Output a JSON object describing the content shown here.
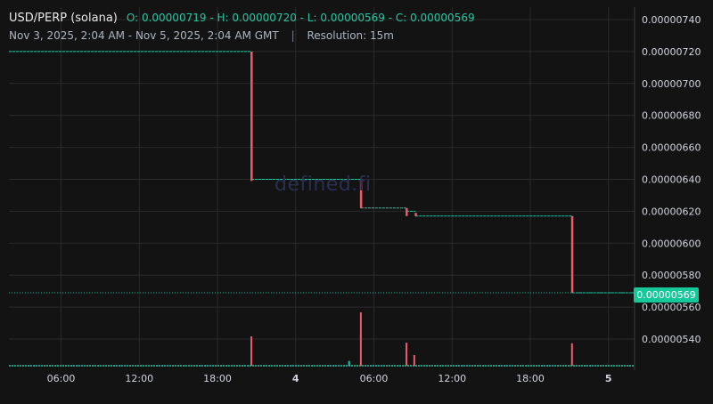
{
  "header": {
    "symbol": "USD/PERP (solana)",
    "ohlc": "O: 0.00000719 - H: 0.00000720 - L: 0.00000569 - C: 0.00000569",
    "range": "Nov 3, 2025, 2:04 AM - Nov 5, 2025, 2:04 AM GMT",
    "separator": "|",
    "resolution": "Resolution: 15m"
  },
  "watermark": "defined.fi",
  "last_price_label": "0.00000569",
  "colors": {
    "background": "#131313",
    "grid": "#2a2a2a",
    "up": "#26c6a0",
    "down": "#f05a6a",
    "price_tag": "#16c79a"
  },
  "chart_data": {
    "type": "candlestick",
    "title": "USD/PERP (solana)",
    "resolution": "15m",
    "x_range_hours": [
      0,
      48
    ],
    "ylim": [
      5.22e-06,
      7.46e-06
    ],
    "y_ticks": [
      "0.00000740",
      "0.00000720",
      "0.00000700",
      "0.00000680",
      "0.00000660",
      "0.00000640",
      "0.00000620",
      "0.00000600",
      "0.00000580",
      "0.00000560",
      "0.00000540"
    ],
    "x_ticks": [
      {
        "t": 4,
        "label": "06:00"
      },
      {
        "t": 10,
        "label": "12:00"
      },
      {
        "t": 16,
        "label": "18:00"
      },
      {
        "t": 22,
        "label": "4"
      },
      {
        "t": 28,
        "label": "06:00"
      },
      {
        "t": 34,
        "label": "12:00"
      },
      {
        "t": 40,
        "label": "18:00"
      },
      {
        "t": 46,
        "label": "5"
      }
    ],
    "last_price": 5.69e-06,
    "price_segments": [
      {
        "t_start": 0,
        "t_end": 18.6,
        "price": 7.2e-06
      },
      {
        "t_start": 18.6,
        "t_end": 27.0,
        "price": 6.4e-06
      },
      {
        "t_start": 27.0,
        "t_end": 30.5,
        "price": 6.22e-06
      },
      {
        "t_start": 30.5,
        "t_end": 31.2,
        "price": 6.2e-06
      },
      {
        "t_start": 31.2,
        "t_end": 43.2,
        "price": 6.17e-06
      },
      {
        "t_start": 43.2,
        "t_end": 48,
        "price": 5.69e-06
      }
    ],
    "drops": [
      {
        "t": 18.6,
        "open": 7.2e-06,
        "close": 6.39e-06
      },
      {
        "t": 27.0,
        "open": 6.4e-06,
        "close": 6.22e-06
      },
      {
        "t": 30.5,
        "open": 6.22e-06,
        "close": 6.17e-06
      },
      {
        "t": 31.2,
        "open": 6.19e-06,
        "close": 6.17e-06
      },
      {
        "t": 43.2,
        "open": 6.17e-06,
        "close": 5.69e-06
      }
    ],
    "volume": {
      "baseline_t": [
        0,
        48
      ],
      "spikes": [
        {
          "t": 18.6,
          "rel": 0.55,
          "dir": "down"
        },
        {
          "t": 26.1,
          "rel": 0.09,
          "dir": "up"
        },
        {
          "t": 27.0,
          "rel": 1.0,
          "dir": "down"
        },
        {
          "t": 30.5,
          "rel": 0.43,
          "dir": "down"
        },
        {
          "t": 31.1,
          "rel": 0.2,
          "dir": "down"
        },
        {
          "t": 43.2,
          "rel": 0.42,
          "dir": "down"
        }
      ]
    }
  }
}
